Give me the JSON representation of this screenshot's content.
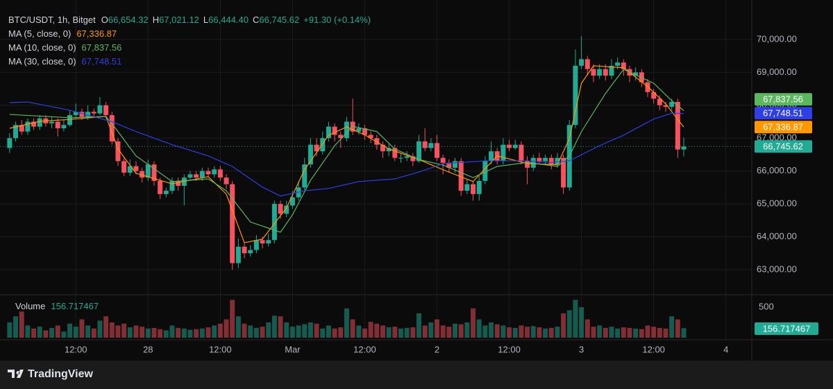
{
  "brand": "TradingView",
  "chart_data": {
    "type": "candlestick",
    "title": "BTC/USDT, 1h, Bitget",
    "ohlc_labels": [
      {
        "key": "O",
        "label": "66,654.32"
      },
      {
        "key": "H",
        "label": "67,021.12"
      },
      {
        "key": "L",
        "label": "66,444.40"
      },
      {
        "key": "C",
        "label": "66,745.62"
      }
    ],
    "change": "+91.30 (+0.14%)",
    "current_label": "66,745.62",
    "volume_name": "Volume",
    "up_color": "#22ab94",
    "down_color": "#f7525f",
    "xlim": [
      -1.6,
      123.3
    ],
    "xticks": [
      {
        "value": 11,
        "label": "12:00"
      },
      {
        "value": 23,
        "label": "28"
      },
      {
        "value": 35,
        "label": "12:00"
      },
      {
        "value": 47,
        "label": "Mar"
      },
      {
        "value": 59,
        "label": "12:00"
      },
      {
        "value": 71,
        "label": "2"
      },
      {
        "value": 83,
        "label": "12:00"
      },
      {
        "value": 95,
        "label": "3"
      },
      {
        "value": 107,
        "label": "12:00"
      },
      {
        "value": 119,
        "label": "4"
      }
    ],
    "ylim": [
      62240,
      71200
    ],
    "yticks": [
      {
        "value": 63000,
        "label": "63,000.00"
      },
      {
        "value": 64000,
        "label": "64,000.00"
      },
      {
        "value": 65000,
        "label": "65,000.00"
      },
      {
        "value": 66000,
        "label": "66,000.00"
      },
      {
        "value": 67000,
        "label": "67,000.00"
      },
      {
        "value": 68000,
        "label": "68,000.00"
      },
      {
        "value": 69000,
        "label": "69,000.00"
      },
      {
        "value": 70000,
        "label": "70,000.00"
      }
    ],
    "y2lim": [
      0,
      625
    ],
    "y2ticks": [
      500
    ],
    "grid": true,
    "open": [
      66700,
      67000,
      67400,
      67200,
      67500,
      67350,
      67600,
      67450,
      67500,
      67300,
      67400,
      67700,
      67800,
      67650,
      67800,
      67750,
      68000,
      67700,
      66900,
      66300,
      65950,
      66150,
      66000,
      65800,
      66200,
      65700,
      65300,
      65400,
      65700,
      65550,
      65800,
      65900,
      65800,
      66000,
      65900,
      66050,
      65800,
      65600,
      63200,
      63700,
      63500,
      63600,
      63900,
      63800,
      63900,
      65000,
      64700,
      64950,
      65200,
      65500,
      66200,
      66800,
      66600,
      67000,
      67350,
      67100,
      67000,
      67500,
      67200,
      67300,
      67100,
      67000,
      66800,
      66600,
      66700,
      66400,
      66400,
      66450,
      66300,
      66900,
      66700,
      66850,
      66400,
      66250,
      66100,
      66300,
      65400,
      65600,
      65300,
      65700,
      66300,
      66600,
      66300,
      66800,
      66700,
      66800,
      66300,
      66100,
      66400,
      66300,
      66400,
      66200,
      66400,
      65500,
      67400,
      69200,
      69400,
      69100,
      68900,
      69100,
      68900,
      69200,
      69300,
      69100,
      68900,
      69000,
      68700,
      68400,
      68200,
      68000,
      67950,
      68100,
      66654.32
    ],
    "high": [
      67150,
      67500,
      67550,
      67600,
      67600,
      67700,
      67700,
      67650,
      67600,
      67550,
      67850,
      68050,
      67900,
      68000,
      67900,
      68250,
      68100,
      67800,
      67000,
      66400,
      66350,
      66300,
      66100,
      66350,
      66300,
      65800,
      65500,
      65800,
      65800,
      65900,
      66000,
      66000,
      66100,
      66100,
      66150,
      66150,
      65900,
      65700,
      63950,
      63800,
      63750,
      64050,
      64000,
      64100,
      65100,
      65100,
      65100,
      65400,
      65700,
      66400,
      67000,
      67000,
      67200,
      67500,
      67450,
      67200,
      67650,
      68200,
      67450,
      67400,
      67200,
      67100,
      66900,
      66850,
      66800,
      66550,
      66600,
      66550,
      67100,
      67300,
      67000,
      67100,
      66500,
      66350,
      66400,
      66400,
      65750,
      65700,
      65850,
      66450,
      66900,
      66700,
      67000,
      66950,
      66950,
      66900,
      66450,
      66500,
      66550,
      66500,
      66500,
      66550,
      66500,
      67550,
      69700,
      70100,
      69500,
      69250,
      69250,
      69250,
      69400,
      69450,
      69400,
      69200,
      69150,
      69100,
      68800,
      68500,
      68300,
      68100,
      68200,
      68200,
      67021.12
    ],
    "low": [
      66550,
      66900,
      67100,
      67100,
      67250,
      67250,
      67350,
      67300,
      67050,
      67200,
      67350,
      67600,
      67550,
      67550,
      67650,
      67700,
      67600,
      66800,
      66150,
      65850,
      65850,
      65900,
      65650,
      65700,
      65550,
      65150,
      65200,
      65300,
      65400,
      64950,
      65700,
      65700,
      65700,
      65800,
      65800,
      65700,
      65450,
      63000,
      63050,
      63350,
      63400,
      63500,
      63650,
      63700,
      63800,
      64550,
      64600,
      64850,
      65100,
      65400,
      66100,
      66450,
      66500,
      66900,
      66900,
      66700,
      66900,
      67100,
      67100,
      66950,
      66850,
      66650,
      66400,
      66450,
      66300,
      66250,
      66300,
      66150,
      66250,
      66600,
      66600,
      66300,
      65900,
      65950,
      65950,
      65250,
      65300,
      65100,
      65100,
      65600,
      66200,
      66200,
      66200,
      66600,
      66650,
      66200,
      65600,
      66000,
      66200,
      66200,
      66050,
      66100,
      65300,
      65400,
      67300,
      69100,
      68900,
      68700,
      68800,
      68750,
      68800,
      69100,
      68900,
      68700,
      68750,
      68550,
      68250,
      68050,
      67850,
      67800,
      67850,
      66400,
      66444.4
    ],
    "close": [
      67000,
      67400,
      67200,
      67500,
      67350,
      67600,
      67450,
      67500,
      67300,
      67400,
      67700,
      67800,
      67650,
      67800,
      67750,
      68000,
      67700,
      66900,
      66300,
      65950,
      66150,
      66000,
      65800,
      66200,
      65700,
      65300,
      65400,
      65700,
      65550,
      65800,
      65900,
      65800,
      66000,
      65900,
      66050,
      65800,
      65600,
      63200,
      63700,
      63500,
      63600,
      63900,
      63800,
      63900,
      65000,
      64700,
      64950,
      65200,
      65500,
      66200,
      66800,
      66600,
      67000,
      67350,
      67100,
      67000,
      67500,
      67200,
      67300,
      67100,
      67000,
      66800,
      66600,
      66700,
      66400,
      66400,
      66450,
      66300,
      66900,
      66700,
      66850,
      66400,
      66250,
      66100,
      66300,
      65400,
      65600,
      65300,
      65700,
      66300,
      66600,
      66300,
      66800,
      66700,
      66800,
      66300,
      66100,
      66400,
      66300,
      66400,
      66200,
      66400,
      65500,
      67400,
      69200,
      69400,
      69100,
      68900,
      69100,
      68900,
      69200,
      69300,
      69100,
      68900,
      69000,
      68700,
      68400,
      68200,
      68000,
      67950,
      68100,
      66654.32,
      66745.62
    ],
    "volume": [
      250,
      350,
      430,
      200,
      150,
      180,
      120,
      160,
      200,
      100,
      230,
      180,
      300,
      200,
      150,
      280,
      350,
      250,
      200,
      230,
      170,
      200,
      180,
      150,
      160,
      140,
      120,
      200,
      160,
      150,
      130,
      140,
      150,
      170,
      200,
      230,
      300,
      620,
      350,
      230,
      200,
      160,
      180,
      250,
      360,
      350,
      250,
      180,
      200,
      220,
      250,
      230,
      150,
      200,
      150,
      170,
      480,
      300,
      200,
      150,
      260,
      230,
      200,
      170,
      180,
      150,
      160,
      170,
      400,
      200,
      250,
      300,
      200,
      180,
      230,
      220,
      250,
      480,
      300,
      200,
      250,
      220,
      200,
      170,
      160,
      200,
      180,
      190,
      170,
      150,
      160,
      180,
      400,
      450,
      620,
      500,
      300,
      180,
      200,
      160,
      180,
      150,
      170,
      160,
      150,
      140,
      200,
      180,
      160,
      150,
      350,
      300,
      156.717467
    ],
    "series": [
      {
        "name": "MA (5, close, 0)",
        "color": "#ff9800",
        "current_label": "67,336.87",
        "x": [
          0,
          5,
          10,
          16,
          18,
          21,
          27,
          33,
          36,
          39,
          42,
          46,
          49,
          53,
          56,
          59,
          63,
          68,
          72,
          77,
          81,
          86,
          91,
          93,
          95,
          97,
          102,
          106,
          109,
          112
        ],
        "values": [
          67300,
          67510,
          67570,
          67660,
          66670,
          65930,
          65610,
          65830,
          65300,
          63820,
          63930,
          64880,
          66040,
          67090,
          67340,
          67100,
          66670,
          66350,
          66040,
          65680,
          66460,
          66230,
          66190,
          66990,
          68670,
          69200,
          69140,
          68570,
          68040,
          67336.87
        ]
      },
      {
        "name": "MA (10, close, 0)",
        "color": "#5cb85f",
        "current_label": "67,837.56",
        "x": [
          0,
          10,
          16,
          18,
          21,
          27,
          33,
          36,
          40,
          45,
          47,
          50,
          54,
          57,
          61,
          64,
          68,
          72,
          77,
          81,
          86,
          91,
          93,
          95,
          99,
          102,
          107,
          110,
          112
        ],
        "values": [
          67720,
          67620,
          67660,
          67200,
          66460,
          65680,
          65760,
          65400,
          64450,
          64140,
          64670,
          65720,
          66770,
          67360,
          67200,
          66670,
          66350,
          66180,
          65800,
          66140,
          66260,
          66140,
          66460,
          67200,
          68360,
          69090,
          68670,
          68140,
          67837.56
        ]
      },
      {
        "name": "MA (30, close, 0)",
        "color": "#2f3fe6",
        "current_label": "67,748.51",
        "x": [
          0,
          3,
          10,
          17,
          21,
          27,
          33,
          37,
          42,
          45,
          49,
          53,
          58,
          64,
          68,
          72,
          79,
          86,
          90,
          93,
          98,
          102,
          107,
          110,
          112
        ],
        "values": [
          68080,
          68100,
          67850,
          67500,
          67200,
          66800,
          66460,
          66140,
          65510,
          65240,
          65400,
          65470,
          65680,
          65760,
          65970,
          66220,
          66310,
          66310,
          66260,
          66310,
          66770,
          67090,
          67580,
          67760,
          67748.51
        ]
      }
    ]
  }
}
